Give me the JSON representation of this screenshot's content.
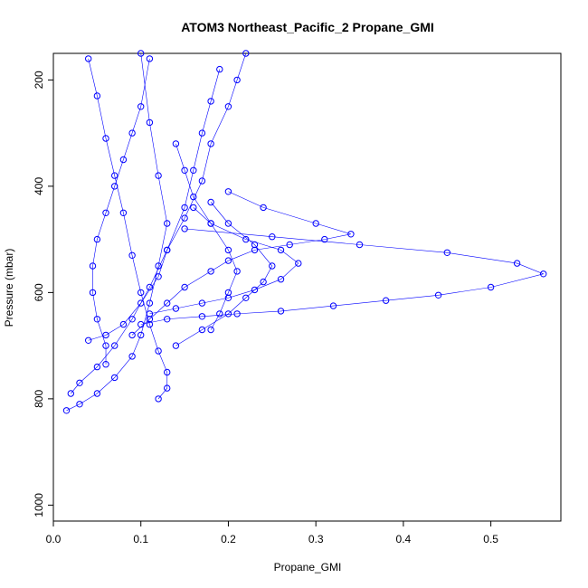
{
  "chart_data": {
    "type": "scatter",
    "title": "ATOM3 Northeast_Pacific_2 Propane_GMI",
    "xlabel": "Propane_GMI",
    "ylabel": "Pressure (mbar)",
    "xlim": [
      0.0,
      0.58
    ],
    "ylim": [
      1030,
      150
    ],
    "y_reversed": true,
    "grid": false,
    "point_color": "#0000ff",
    "marker": "open-circle",
    "x_ticks": [
      "0.0",
      "0.1",
      "0.2",
      "0.3",
      "0.4",
      "0.5"
    ],
    "y_ticks": [
      "200",
      "400",
      "600",
      "800",
      "1000"
    ],
    "series": [
      {
        "x": [
          0.015,
          0.03,
          0.05,
          0.07,
          0.09,
          0.1,
          0.11,
          0.12,
          0.13,
          0.12,
          0.11,
          0.1
        ],
        "y": [
          822,
          810,
          790,
          760,
          720,
          680,
          620,
          550,
          470,
          380,
          280,
          150
        ]
      },
      {
        "x": [
          0.02,
          0.03,
          0.05,
          0.07,
          0.09,
          0.11,
          0.13,
          0.15,
          0.16,
          0.17,
          0.18,
          0.19
        ],
        "y": [
          790,
          770,
          740,
          700,
          650,
          590,
          520,
          440,
          370,
          300,
          240,
          180
        ]
      },
      {
        "x": [
          0.06,
          0.06,
          0.05,
          0.045,
          0.045,
          0.05,
          0.06,
          0.07,
          0.08,
          0.09,
          0.1,
          0.11
        ],
        "y": [
          735,
          700,
          650,
          600,
          550,
          500,
          450,
          400,
          350,
          300,
          250,
          160
        ]
      },
      {
        "x": [
          0.04,
          0.06,
          0.08,
          0.1,
          0.12,
          0.13,
          0.15,
          0.17,
          0.18,
          0.2,
          0.21,
          0.22
        ],
        "y": [
          690,
          680,
          660,
          620,
          570,
          520,
          460,
          390,
          320,
          250,
          200,
          150
        ]
      },
      {
        "x": [
          0.12,
          0.13,
          0.13,
          0.12,
          0.11,
          0.1,
          0.09,
          0.08,
          0.07,
          0.06,
          0.05,
          0.04
        ],
        "y": [
          800,
          780,
          750,
          710,
          660,
          600,
          530,
          450,
          380,
          310,
          230,
          160
        ]
      },
      {
        "x": [
          0.09,
          0.11,
          0.13,
          0.15,
          0.18,
          0.2,
          0.23,
          0.27,
          0.31,
          0.34,
          0.3,
          0.24,
          0.2
        ],
        "y": [
          680,
          650,
          620,
          590,
          560,
          540,
          520,
          510,
          500,
          490,
          470,
          440,
          410
        ]
      },
      {
        "x": [
          0.1,
          0.13,
          0.17,
          0.21,
          0.26,
          0.32,
          0.38,
          0.44,
          0.5,
          0.56,
          0.53,
          0.45,
          0.35,
          0.25,
          0.15
        ],
        "y": [
          660,
          650,
          645,
          640,
          635,
          625,
          615,
          605,
          590,
          565,
          545,
          525,
          510,
          495,
          480
        ]
      },
      {
        "x": [
          0.11,
          0.14,
          0.17,
          0.2,
          0.23,
          0.26,
          0.28,
          0.26,
          0.22,
          0.18,
          0.16
        ],
        "y": [
          640,
          630,
          620,
          610,
          595,
          575,
          545,
          520,
          500,
          470,
          440
        ]
      },
      {
        "x": [
          0.14,
          0.17,
          0.2,
          0.22,
          0.24,
          0.25,
          0.23,
          0.2,
          0.18
        ],
        "y": [
          700,
          670,
          640,
          610,
          580,
          550,
          510,
          470,
          430
        ]
      },
      {
        "x": [
          0.18,
          0.19,
          0.2,
          0.21,
          0.2,
          0.18,
          0.16,
          0.15,
          0.14
        ],
        "y": [
          670,
          640,
          600,
          560,
          520,
          470,
          420,
          370,
          320
        ]
      }
    ]
  }
}
